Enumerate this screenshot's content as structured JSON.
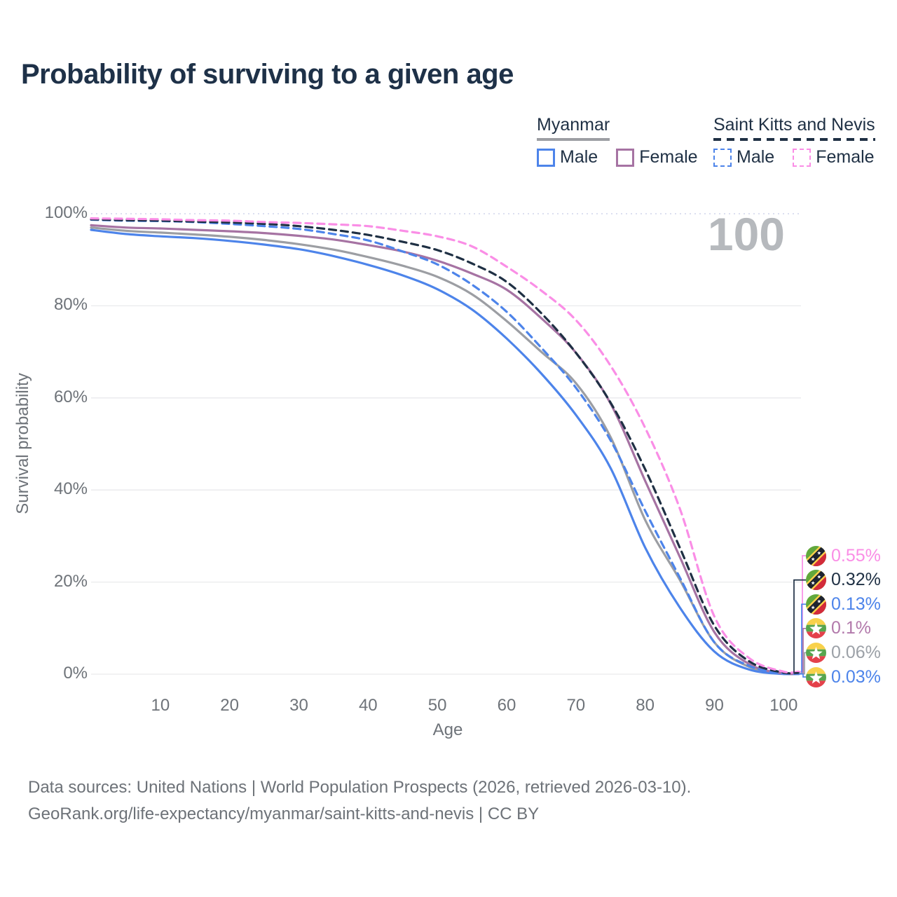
{
  "title": "Probability of surviving to a given age",
  "watermark": "100",
  "legend": {
    "groups": [
      {
        "name": "Myanmar",
        "line_style": "solid",
        "line_color": "#9c9ea3",
        "items": [
          {
            "label": "Male",
            "color": "#4d84ea",
            "dashed": false
          },
          {
            "label": "Female",
            "color": "#a673a3",
            "dashed": false
          }
        ]
      },
      {
        "name": "Saint Kitts and Nevis",
        "line_style": "dashed",
        "line_color": "#1f3044",
        "items": [
          {
            "label": "Male",
            "color": "#4d84ea",
            "dashed": true
          },
          {
            "label": "Female",
            "color": "#fa8ee6",
            "dashed": true
          }
        ]
      }
    ]
  },
  "chart_data": {
    "type": "line",
    "title": "Probability of surviving to a given age",
    "xlabel": "Age",
    "ylabel": "Survival probability",
    "xlim": [
      0,
      102.5
    ],
    "ylim": [
      0,
      100
    ],
    "grid": "horizontal",
    "legend_position": "top-right",
    "x_ticks": [
      10,
      20,
      30,
      40,
      50,
      60,
      70,
      80,
      90,
      100
    ],
    "y_ticks": [
      {
        "value": 0,
        "label": "0%"
      },
      {
        "value": 20,
        "label": "20%"
      },
      {
        "value": 40,
        "label": "40%"
      },
      {
        "value": 60,
        "label": "60%"
      },
      {
        "value": 80,
        "label": "80%"
      },
      {
        "value": 100,
        "label": "100%"
      }
    ],
    "ages": [
      0,
      5,
      10,
      15,
      20,
      25,
      30,
      35,
      40,
      45,
      50,
      55,
      60,
      65,
      70,
      75,
      80,
      85,
      90,
      95,
      100
    ],
    "series": [
      {
        "key": "myanmar-all",
        "name": "Myanmar",
        "color": "#9c9ea3",
        "dashed": false,
        "values": [
          97.0,
          96.3,
          95.9,
          95.5,
          95.0,
          94.3,
          93.4,
          92.2,
          90.6,
          88.7,
          86.3,
          82.5,
          76.7,
          70.0,
          63.2,
          51.5,
          33.5,
          20.5,
          6.9,
          1.6,
          0.06
        ]
      },
      {
        "key": "myanmar-male",
        "name": "Myanmar Male",
        "color": "#4d84ea",
        "dashed": false,
        "values": [
          96.5,
          95.6,
          95.1,
          94.7,
          94.1,
          93.3,
          92.3,
          90.8,
          88.9,
          86.6,
          83.6,
          79.2,
          72.9,
          65.3,
          56.3,
          44.8,
          27.5,
          14.5,
          4.9,
          1.0,
          0.03
        ]
      },
      {
        "key": "myanmar-female",
        "name": "Myanmar Female",
        "color": "#a673a3",
        "dashed": false,
        "values": [
          97.5,
          97.0,
          96.8,
          96.5,
          96.2,
          95.8,
          95.2,
          94.4,
          93.2,
          91.8,
          89.8,
          87.0,
          83.5,
          77.3,
          69.8,
          58.8,
          42.0,
          25.5,
          9.1,
          2.2,
          0.1
        ]
      },
      {
        "key": "skn-male",
        "name": "Saint Kitts and Nevis Male",
        "color": "#4d84ea",
        "dashed": true,
        "values": [
          98.7,
          98.5,
          98.4,
          98.2,
          97.8,
          97.3,
          96.7,
          95.6,
          94.2,
          91.8,
          89.0,
          84.6,
          78.7,
          70.9,
          62.2,
          50.8,
          35.5,
          21.0,
          6.9,
          1.8,
          0.13
        ]
      },
      {
        "key": "skn-all",
        "name": "Saint Kitts and Nevis",
        "color": "#1f3044",
        "dashed": true,
        "values": [
          98.8,
          98.6,
          98.5,
          98.3,
          98.1,
          97.8,
          97.3,
          96.5,
          95.4,
          93.9,
          92.1,
          89.2,
          85.2,
          78.4,
          69.8,
          59.0,
          44.5,
          27.5,
          10.5,
          2.8,
          0.32
        ]
      },
      {
        "key": "skn-female",
        "name": "Saint Kitts and Nevis Female",
        "color": "#fa8ee6",
        "dashed": true,
        "values": [
          99.0,
          98.9,
          98.8,
          98.6,
          98.5,
          98.2,
          98.0,
          97.7,
          97.3,
          96.3,
          95.1,
          92.9,
          88.5,
          83.3,
          76.9,
          67.0,
          53.5,
          36.0,
          12.5,
          3.5,
          0.55
        ]
      }
    ]
  },
  "end_labels": [
    {
      "series": "skn-female",
      "flag": "saint-kitts-and-nevis",
      "label": "0.55%",
      "color": "#fa8ee6"
    },
    {
      "series": "skn-all",
      "flag": "saint-kitts-and-nevis",
      "label": "0.32%",
      "color": "#1f3044"
    },
    {
      "series": "skn-male",
      "flag": "saint-kitts-and-nevis",
      "label": "0.13%",
      "color": "#4d84ea"
    },
    {
      "series": "myanmar-female",
      "flag": "myanmar",
      "label": "0.1%",
      "color": "#b279ab"
    },
    {
      "series": "myanmar-all",
      "flag": "myanmar",
      "label": "0.06%",
      "color": "#9ca1a7"
    },
    {
      "series": "myanmar-male",
      "flag": "myanmar",
      "label": "0.03%",
      "color": "#4d84ea"
    }
  ],
  "footer": {
    "line1": "Data sources: United Nations | World Population Prospects (2026, retrieved 2026-03-10).",
    "line2": "GeoRank.org/life-expectancy/myanmar/saint-kitts-and-nevis | CC BY"
  }
}
